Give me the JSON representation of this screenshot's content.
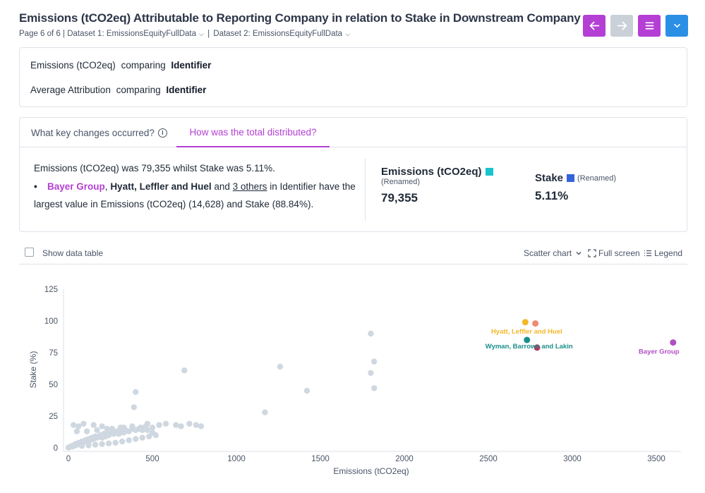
{
  "header": {
    "title": "Emissions (tCO2eq) Attributable to Reporting Company in relation to Stake in Downstream Company",
    "page": "Page 6 of 6 |",
    "dataset1": "Dataset 1: EmissionsEquityFullData",
    "divider": "|",
    "dataset2": "Dataset 2: EmissionsEquityFullData"
  },
  "nav": {
    "back_icon": "arrow-left-icon",
    "forward_icon": "arrow-right-icon",
    "menu_icon": "hamburger-menu-icon",
    "dropdown_icon": "chevron-down-icon"
  },
  "comparisons": [
    {
      "measure": "Emissions (tCO2eq)",
      "word": "comparing",
      "dimension": "Identifier"
    },
    {
      "measure": "Average Attribution",
      "word": "comparing",
      "dimension": "Identifier"
    }
  ],
  "tabs": {
    "key_changes": "What key changes occurred?",
    "distribution": "How was the total distributed?"
  },
  "summary": {
    "line1": "Emissions (tCO2eq) was 79,355 whilst Stake was 5.11%.",
    "bullet": "•",
    "entity1": "Bayer Group",
    "comma": ",",
    "entity2": "Hyatt, Leffler and Huel",
    "and": "and",
    "others": "3 others",
    "rest": "in Identifier have the largest value in Emissions (tCO2eq) (14,628) and Stake (88.84%)."
  },
  "metrics": {
    "emissions": {
      "name": "Emissions (tCO2eq)",
      "renamed": "(Renamed)",
      "value": "79,355",
      "color": "#19c4cf"
    },
    "stake": {
      "name": "Stake",
      "renamed": "(Renamed)",
      "value": "5.11%",
      "color": "#3563d9"
    }
  },
  "toolbar": {
    "show_table": "Show data table",
    "chart_type": "Scatter chart",
    "full_screen": "Full screen",
    "legend": "Legend"
  },
  "chart_data": {
    "type": "scatter",
    "xlabel": "Emissions (tCO2eq)",
    "ylabel": "Stake (%)",
    "xlim": [
      -15,
      3650
    ],
    "ylim": [
      0,
      125
    ],
    "x_ticks": [
      0,
      500,
      1000,
      1500,
      2000,
      2500,
      3000,
      3500
    ],
    "y_ticks": [
      0,
      25,
      50,
      75,
      100,
      125
    ],
    "grey_color": "#cfd8e0",
    "highlighted": [
      {
        "label": "Hyatt, Leffler and Huel",
        "x": 2720,
        "y": 99,
        "color": "#f5b729"
      },
      {
        "label": "",
        "x": 2780,
        "y": 98,
        "color": "#f08a72"
      },
      {
        "label": "Wyman, Barrows and Lakin",
        "x": 2730,
        "y": 85,
        "color": "#1a8e8a"
      },
      {
        "label": "",
        "x": 2790,
        "y": 79,
        "color": "#b5365f"
      },
      {
        "label": "Bayer Group",
        "x": 3600,
        "y": 83,
        "color": "#b14fc4"
      }
    ],
    "points": [
      [
        1800,
        90
      ],
      [
        1820,
        68
      ],
      [
        1800,
        59
      ],
      [
        1820,
        47
      ],
      [
        1260,
        64
      ],
      [
        1420,
        45
      ],
      [
        1170,
        28
      ],
      [
        690,
        61
      ],
      [
        400,
        44
      ],
      [
        390,
        32
      ],
      [
        790,
        17
      ],
      [
        760,
        18
      ],
      [
        720,
        19
      ],
      [
        670,
        17
      ],
      [
        640,
        18
      ],
      [
        580,
        19
      ],
      [
        540,
        18
      ],
      [
        500,
        16
      ],
      [
        470,
        19
      ],
      [
        460,
        17
      ],
      [
        440,
        14
      ],
      [
        420,
        15
      ],
      [
        400,
        14
      ],
      [
        380,
        15
      ],
      [
        360,
        13
      ],
      [
        340,
        14
      ],
      [
        330,
        12
      ],
      [
        320,
        13
      ],
      [
        300,
        11
      ],
      [
        290,
        13
      ],
      [
        270,
        11
      ],
      [
        260,
        12
      ],
      [
        240,
        10
      ],
      [
        230,
        12
      ],
      [
        220,
        9
      ],
      [
        210,
        11
      ],
      [
        200,
        8
      ],
      [
        190,
        10
      ],
      [
        180,
        9
      ],
      [
        170,
        8
      ],
      [
        160,
        9
      ],
      [
        150,
        7
      ],
      [
        140,
        8
      ],
      [
        130,
        6
      ],
      [
        120,
        7
      ],
      [
        110,
        5
      ],
      [
        100,
        6
      ],
      [
        95,
        5
      ],
      [
        85,
        4
      ],
      [
        80,
        5
      ],
      [
        70,
        3
      ],
      [
        60,
        4
      ],
      [
        55,
        3
      ],
      [
        45,
        2
      ],
      [
        40,
        3
      ],
      [
        35,
        2
      ],
      [
        30,
        1.5
      ],
      [
        25,
        1
      ],
      [
        20,
        1.5
      ],
      [
        15,
        1
      ],
      [
        10,
        0.8
      ],
      [
        5,
        0.5
      ],
      [
        0,
        0.2
      ],
      [
        30,
        18
      ],
      [
        60,
        17
      ],
      [
        90,
        19
      ],
      [
        150,
        18
      ],
      [
        200,
        17
      ],
      [
        260,
        15
      ],
      [
        330,
        16
      ],
      [
        50,
        13
      ],
      [
        110,
        13
      ],
      [
        170,
        14
      ],
      [
        230,
        15
      ],
      [
        310,
        16
      ],
      [
        380,
        17
      ],
      [
        430,
        16
      ],
      [
        470,
        14
      ],
      [
        500,
        12
      ],
      [
        520,
        10
      ],
      [
        480,
        9
      ],
      [
        440,
        8
      ],
      [
        400,
        7
      ],
      [
        360,
        6
      ],
      [
        320,
        5
      ],
      [
        280,
        4
      ],
      [
        240,
        3.5
      ],
      [
        200,
        3
      ],
      [
        160,
        2.5
      ],
      [
        120,
        2
      ],
      [
        80,
        1.5
      ]
    ]
  }
}
